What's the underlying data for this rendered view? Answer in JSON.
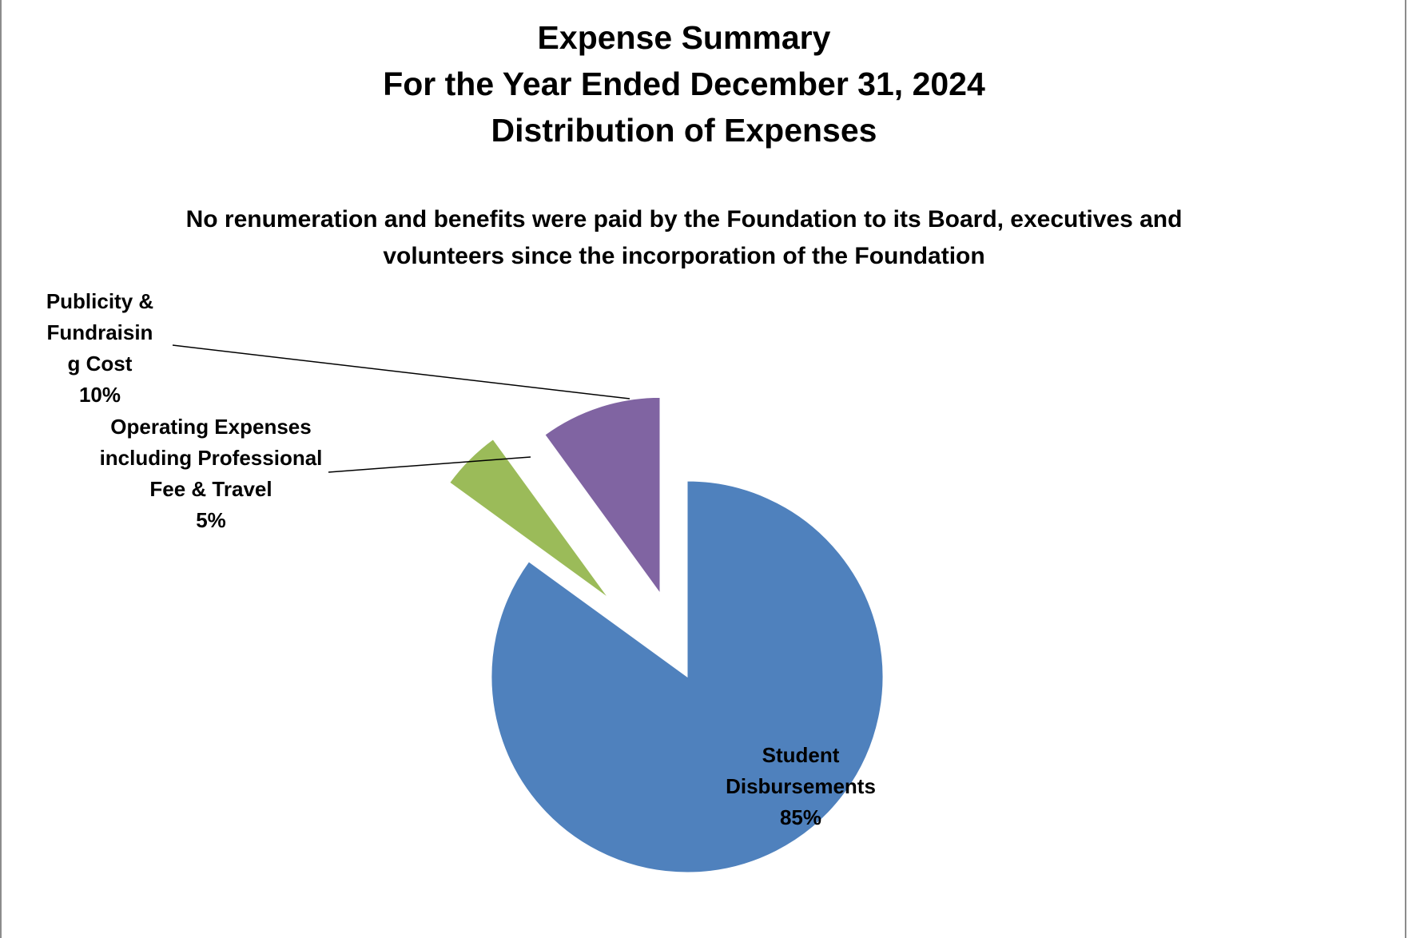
{
  "chart_data": {
    "type": "pie",
    "title": [
      "Expense Summary",
      "For the Year Ended December 31, 2024",
      "Distribution of Expenses"
    ],
    "subtitle": [
      "No renumeration and benefits were paid by the Foundation to its Board, executives and",
      "volunteers since the incorporation of the Foundation"
    ],
    "slices": [
      {
        "label_lines": [
          "Student",
          "Disbursements"
        ],
        "percent_label": "85%",
        "value": 85,
        "color": "#4f81bd"
      },
      {
        "label_lines": [
          "Operating Expenses",
          "including Professional",
          "Fee & Travel"
        ],
        "percent_label": "5%",
        "value": 5,
        "color": "#9bbb59"
      },
      {
        "label_lines": [
          "Publicity &",
          "Fundraisin",
          "g Cost"
        ],
        "percent_label": "10%",
        "value": 10,
        "color": "#8064a2"
      }
    ],
    "legend": "none"
  }
}
